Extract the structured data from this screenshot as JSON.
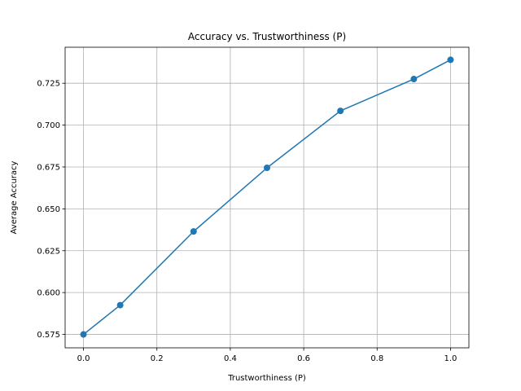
{
  "chart_data": {
    "type": "line",
    "title": "Accuracy vs. Trustworthiness (P)",
    "xlabel": "Trustworthiness (P)",
    "ylabel": "Average Accuracy",
    "xlim": [
      -0.05,
      1.05
    ],
    "ylim": [
      0.567,
      0.7465
    ],
    "xticks": [
      0.0,
      0.2,
      0.4,
      0.6,
      0.8,
      1.0
    ],
    "xtick_labels": [
      "0.0",
      "0.2",
      "0.4",
      "0.6",
      "0.8",
      "1.0"
    ],
    "yticks": [
      0.575,
      0.6,
      0.625,
      0.65,
      0.675,
      0.7,
      0.725
    ],
    "ytick_labels": [
      "0.575",
      "0.600",
      "0.625",
      "0.650",
      "0.675",
      "0.700",
      "0.725"
    ],
    "grid": true,
    "series": [
      {
        "color": "#1f77b4",
        "marker": "circle",
        "x": [
          0.0,
          0.1,
          0.3,
          0.5,
          0.7,
          0.9,
          1.0
        ],
        "y": [
          0.575,
          0.5925,
          0.6365,
          0.6745,
          0.7085,
          0.7275,
          0.739
        ]
      }
    ]
  }
}
